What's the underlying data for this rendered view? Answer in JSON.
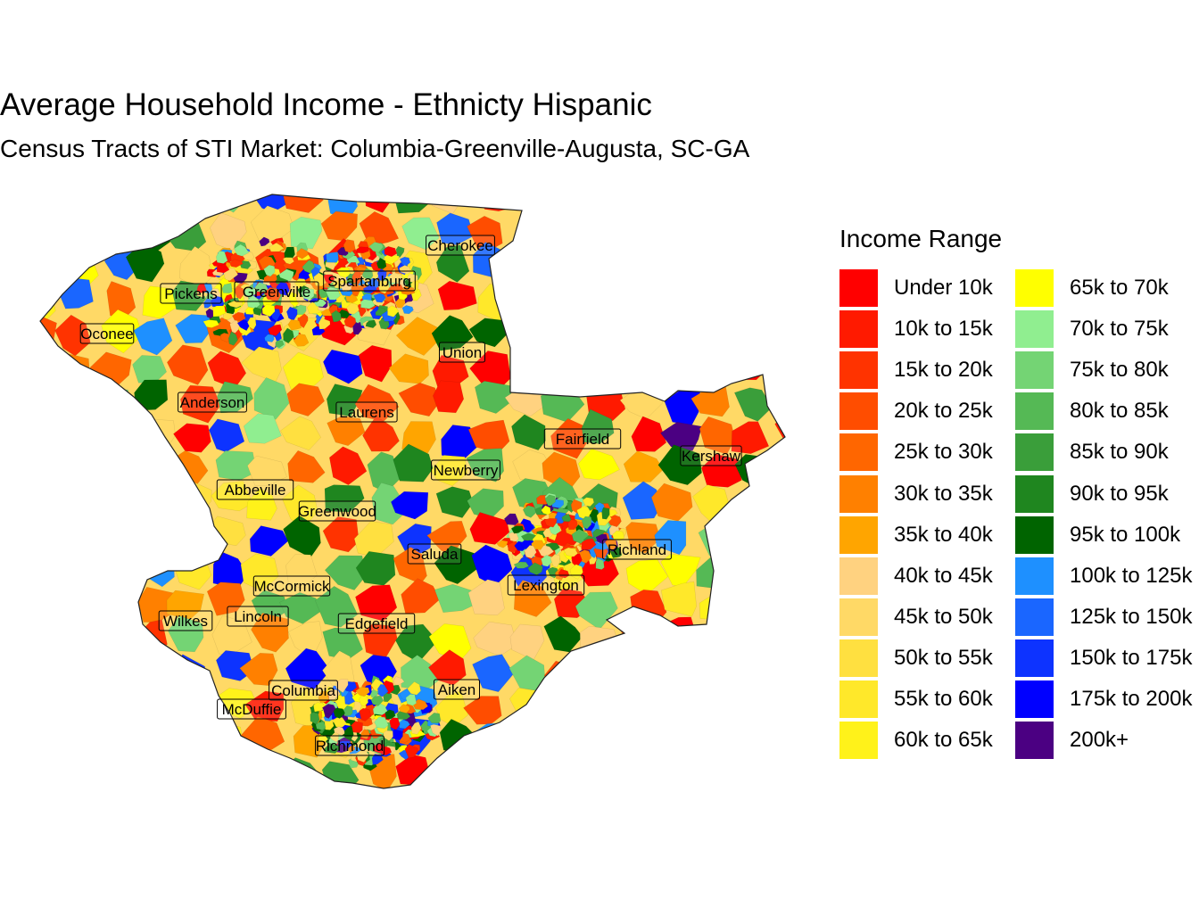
{
  "title": "Average Household Income - Ethnicty Hispanic",
  "subtitle": "Census Tracts of STI Market: Columbia-Greenville-Augusta, SC-GA",
  "legend": {
    "title": "Income Range",
    "items": [
      {
        "label": "Under 10k",
        "color": "#ff0000"
      },
      {
        "label": "10k to 15k",
        "color": "#ff1a00"
      },
      {
        "label": "15k to 20k",
        "color": "#ff3300"
      },
      {
        "label": "20k to 25k",
        "color": "#ff4d00"
      },
      {
        "label": "25k to 30k",
        "color": "#ff6600"
      },
      {
        "label": "30k to 35k",
        "color": "#ff8000"
      },
      {
        "label": "35k to 40k",
        "color": "#ffa500"
      },
      {
        "label": "40k to 45k",
        "color": "#ffd280"
      },
      {
        "label": "45k to 50k",
        "color": "#ffd966"
      },
      {
        "label": "50k to 55k",
        "color": "#ffe040"
      },
      {
        "label": "55k to 60k",
        "color": "#ffe82a"
      },
      {
        "label": "60k to 65k",
        "color": "#fff21a"
      },
      {
        "label": "65k to 70k",
        "color": "#ffff00"
      },
      {
        "label": "70k to 75k",
        "color": "#90ee90"
      },
      {
        "label": "75k to 80k",
        "color": "#74d474"
      },
      {
        "label": "80k to 85k",
        "color": "#55b955"
      },
      {
        "label": "85k to 90k",
        "color": "#3a9e3a"
      },
      {
        "label": "90k to 95k",
        "color": "#1f861f"
      },
      {
        "label": "95k to 100k",
        "color": "#006400"
      },
      {
        "label": "100k to 125k",
        "color": "#1e90ff"
      },
      {
        "label": "125k to 150k",
        "color": "#1a66ff"
      },
      {
        "label": "150k to 175k",
        "color": "#0d33ff"
      },
      {
        "label": "175k to 200k",
        "color": "#0000ff"
      },
      {
        "label": "200k+",
        "color": "#4b0082"
      }
    ]
  },
  "counties": [
    "Cherokee",
    "Spartanburg",
    "Greenville",
    "Pickens",
    "Oconee",
    "Union",
    "Anderson",
    "Laurens",
    "Fairfield",
    "Kershaw",
    "Newberry",
    "Abbeville",
    "Greenwood",
    "Richland",
    "Saluda",
    "Lexington",
    "McCormick",
    "Wilkes",
    "Lincoln",
    "Edgefield",
    "Columbia",
    "Aiken",
    "McDuffie",
    "Richmond"
  ]
}
